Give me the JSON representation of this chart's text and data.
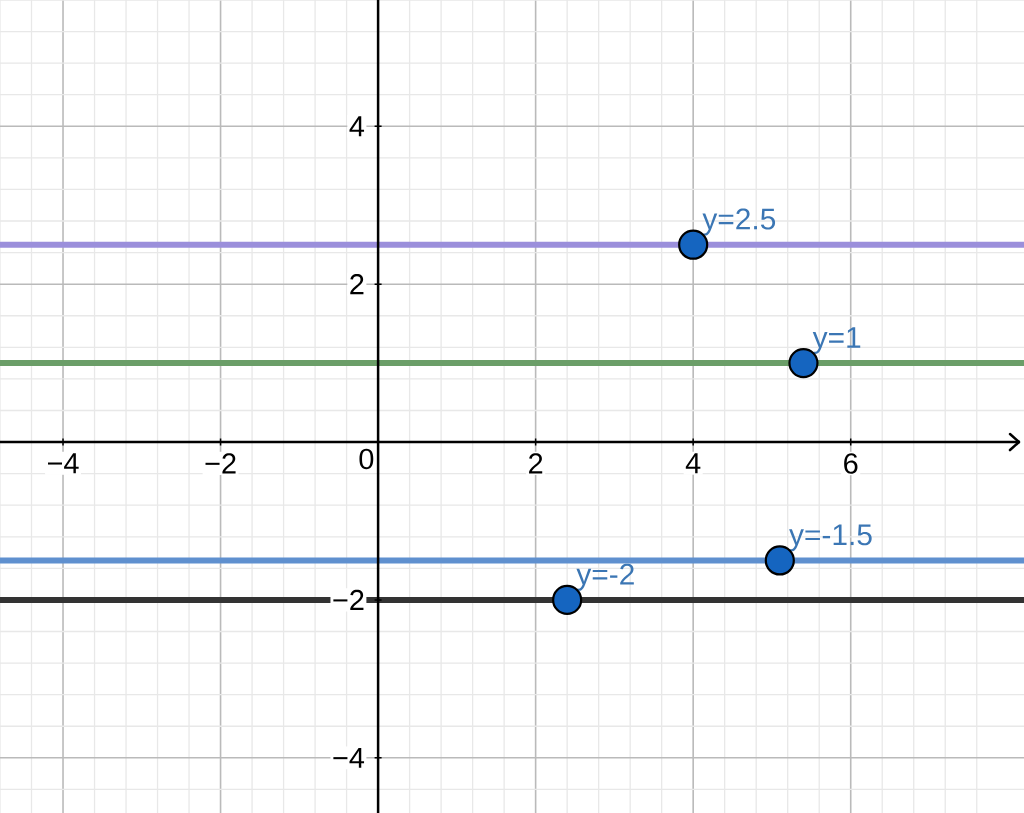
{
  "chart_data": {
    "type": "line",
    "xlim": [
      -4.8,
      8.2
    ],
    "ylim": [
      -4.7,
      5.6
    ],
    "xticks": [
      {
        "value": -4,
        "label": "−4"
      },
      {
        "value": -2,
        "label": "−2"
      },
      0,
      2,
      4,
      6
    ],
    "yticks": [
      {
        "value": -4,
        "label": "−4"
      },
      {
        "value": -2,
        "label": "−2"
      },
      2,
      4
    ],
    "grid": true,
    "series": [
      {
        "color": "#9b8fdb",
        "x": [
          -4.8,
          8.2
        ],
        "values": [
          2.5,
          2.5
        ]
      },
      {
        "color": "#6b9e68",
        "x": [
          -4.8,
          8.2
        ],
        "values": [
          1,
          1
        ]
      },
      {
        "color": "#5f90cf",
        "x": [
          -4.8,
          8.2
        ],
        "values": [
          -1.5,
          -1.5
        ]
      },
      {
        "color": "#333333",
        "x": [
          -4.8,
          8.2
        ],
        "values": [
          -2,
          -2
        ]
      },
      {
        "type": "scatter",
        "marker": "circle",
        "color": "#1565c0",
        "x": [
          4.0,
          5.4,
          5.1,
          2.4
        ],
        "values": [
          2.5,
          1,
          -1.5,
          -2
        ]
      }
    ],
    "annotations": [
      {
        "text": "y=2.5",
        "x": 4.0,
        "y": 2.5
      },
      {
        "text": "y=1",
        "x": 5.4,
        "y": 1
      },
      {
        "text": "y=-1.5",
        "x": 5.1,
        "y": -1.5
      },
      {
        "text": "y=-2",
        "x": 2.4,
        "y": -2
      }
    ]
  }
}
